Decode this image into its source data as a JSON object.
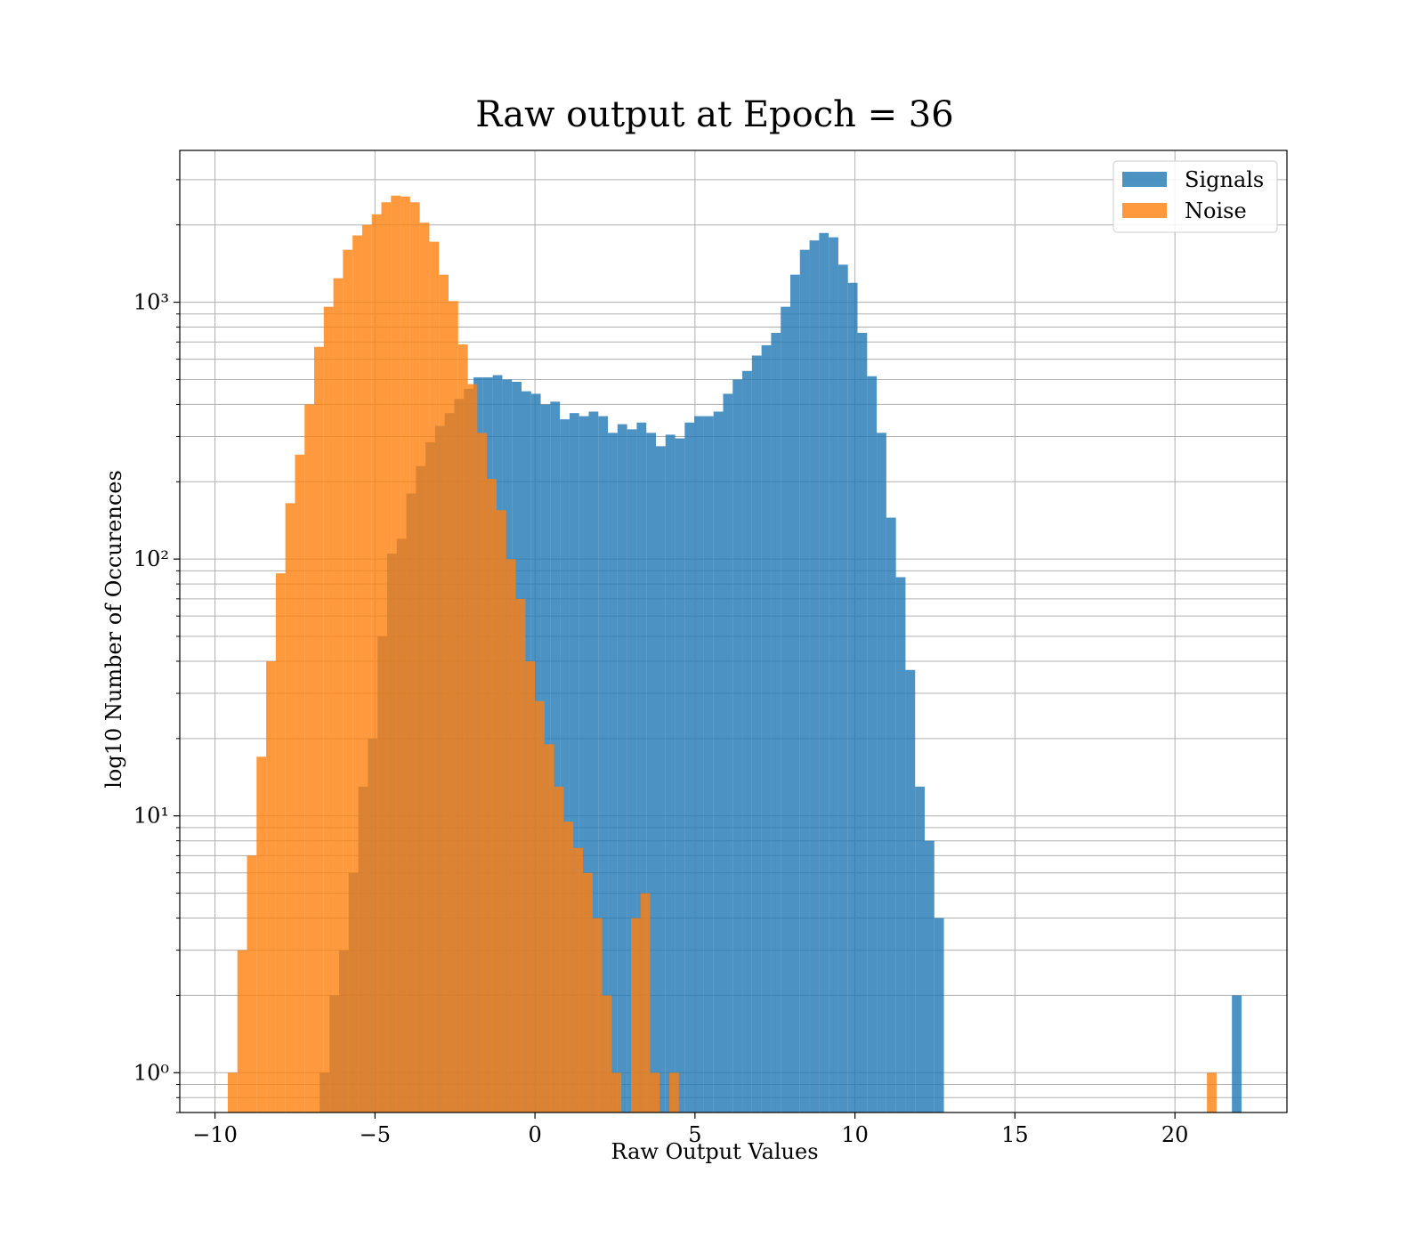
{
  "chart_data": {
    "type": "bar",
    "title": "Raw output at Epoch = 36",
    "xlabel": "Raw Output Values",
    "ylabel": "log10 Number of Occurences",
    "yscale": "log",
    "xlim": [
      -11.1,
      23.5
    ],
    "ylim": [
      0.7,
      3900
    ],
    "grid": true,
    "legend_position": "top-right",
    "x_ticks": [
      -10,
      -5,
      0,
      5,
      10,
      15,
      20
    ],
    "x_tick_labels": [
      "−10",
      "−5",
      "0",
      "5",
      "10",
      "15",
      "20"
    ],
    "y_ticks": [
      1,
      10,
      100,
      1000
    ],
    "y_tick_labels": [
      "10⁰",
      "10¹",
      "10²",
      "10³"
    ],
    "series": [
      {
        "name": "Signals",
        "color": "#1f77b4",
        "bins": [
          [
            -6.73,
            -6.42,
            1
          ],
          [
            -6.42,
            -6.12,
            2
          ],
          [
            -6.12,
            -5.82,
            3
          ],
          [
            -5.82,
            -5.52,
            6
          ],
          [
            -5.52,
            -5.22,
            13
          ],
          [
            -5.22,
            -4.92,
            20
          ],
          [
            -4.92,
            -4.62,
            50
          ],
          [
            -4.62,
            -4.32,
            105
          ],
          [
            -4.32,
            -4.02,
            120
          ],
          [
            -4.02,
            -3.72,
            180
          ],
          [
            -3.72,
            -3.42,
            230
          ],
          [
            -3.42,
            -3.12,
            285
          ],
          [
            -3.12,
            -2.82,
            330
          ],
          [
            -2.82,
            -2.52,
            370
          ],
          [
            -2.52,
            -2.22,
            420
          ],
          [
            -2.22,
            -1.92,
            460
          ],
          [
            -1.92,
            -1.62,
            510
          ],
          [
            -1.62,
            -1.32,
            510
          ],
          [
            -1.32,
            -1.02,
            520
          ],
          [
            -1.02,
            -0.72,
            500
          ],
          [
            -0.72,
            -0.42,
            490
          ],
          [
            -0.42,
            -0.12,
            450
          ],
          [
            -0.12,
            0.18,
            440
          ],
          [
            0.18,
            0.48,
            400
          ],
          [
            0.48,
            0.78,
            410
          ],
          [
            0.78,
            1.08,
            350
          ],
          [
            1.08,
            1.38,
            370
          ],
          [
            1.38,
            1.68,
            360
          ],
          [
            1.68,
            1.98,
            375
          ],
          [
            1.98,
            2.28,
            360
          ],
          [
            2.28,
            2.58,
            310
          ],
          [
            2.58,
            2.88,
            335
          ],
          [
            2.88,
            3.18,
            320
          ],
          [
            3.18,
            3.48,
            340
          ],
          [
            3.48,
            3.78,
            310
          ],
          [
            3.78,
            4.08,
            275
          ],
          [
            4.08,
            4.38,
            305
          ],
          [
            4.38,
            4.68,
            295
          ],
          [
            4.68,
            4.98,
            340
          ],
          [
            4.98,
            5.28,
            360
          ],
          [
            5.28,
            5.58,
            360
          ],
          [
            5.58,
            5.88,
            375
          ],
          [
            5.88,
            6.18,
            440
          ],
          [
            6.18,
            6.48,
            500
          ],
          [
            6.48,
            6.78,
            540
          ],
          [
            6.78,
            7.08,
            620
          ],
          [
            7.08,
            7.38,
            680
          ],
          [
            7.38,
            7.68,
            760
          ],
          [
            7.68,
            7.98,
            960
          ],
          [
            7.98,
            8.28,
            1280
          ],
          [
            8.28,
            8.58,
            1600
          ],
          [
            8.58,
            8.88,
            1740
          ],
          [
            8.88,
            9.18,
            1860
          ],
          [
            9.18,
            9.48,
            1790
          ],
          [
            9.48,
            9.78,
            1400
          ],
          [
            9.78,
            10.08,
            1190
          ],
          [
            10.08,
            10.38,
            760
          ],
          [
            10.38,
            10.68,
            515
          ],
          [
            10.68,
            10.98,
            310
          ],
          [
            10.98,
            11.28,
            145
          ],
          [
            11.28,
            11.58,
            85
          ],
          [
            11.58,
            11.88,
            37
          ],
          [
            11.88,
            12.18,
            13
          ],
          [
            12.18,
            12.48,
            8
          ],
          [
            12.48,
            12.78,
            4
          ],
          [
            21.78,
            22.08,
            2
          ]
        ]
      },
      {
        "name": "Noise",
        "color": "#ff7f0e",
        "bins": [
          [
            -9.6,
            -9.3,
            1
          ],
          [
            -9.3,
            -9.0,
            3
          ],
          [
            -9.0,
            -8.7,
            7
          ],
          [
            -8.7,
            -8.4,
            17
          ],
          [
            -8.4,
            -8.1,
            40
          ],
          [
            -8.1,
            -7.8,
            88
          ],
          [
            -7.8,
            -7.5,
            165
          ],
          [
            -7.5,
            -7.2,
            255
          ],
          [
            -7.2,
            -6.9,
            400
          ],
          [
            -6.9,
            -6.6,
            670
          ],
          [
            -6.6,
            -6.3,
            960
          ],
          [
            -6.3,
            -6.0,
            1240
          ],
          [
            -6.0,
            -5.7,
            1600
          ],
          [
            -5.7,
            -5.4,
            1820
          ],
          [
            -5.4,
            -5.1,
            2000
          ],
          [
            -5.1,
            -4.8,
            2200
          ],
          [
            -4.8,
            -4.5,
            2450
          ],
          [
            -4.5,
            -4.2,
            2600
          ],
          [
            -4.2,
            -3.9,
            2580
          ],
          [
            -3.9,
            -3.6,
            2450
          ],
          [
            -3.6,
            -3.3,
            2040
          ],
          [
            -3.3,
            -3.0,
            1720
          ],
          [
            -3.0,
            -2.7,
            1280
          ],
          [
            -2.7,
            -2.4,
            1010
          ],
          [
            -2.4,
            -2.1,
            685
          ],
          [
            -2.1,
            -1.8,
            480
          ],
          [
            -1.8,
            -1.5,
            310
          ],
          [
            -1.5,
            -1.2,
            205
          ],
          [
            -1.2,
            -0.9,
            155
          ],
          [
            -0.9,
            -0.6,
            100
          ],
          [
            -0.6,
            -0.3,
            70
          ],
          [
            -0.3,
            0.0,
            40
          ],
          [
            0.0,
            0.3,
            28
          ],
          [
            0.3,
            0.6,
            19
          ],
          [
            0.6,
            0.9,
            13
          ],
          [
            0.9,
            1.2,
            9.5
          ],
          [
            1.2,
            1.5,
            7.5
          ],
          [
            1.5,
            1.8,
            6
          ],
          [
            1.8,
            2.1,
            4
          ],
          [
            2.1,
            2.4,
            2
          ],
          [
            2.4,
            2.7,
            1
          ],
          [
            3.0,
            3.3,
            4
          ],
          [
            3.3,
            3.6,
            5
          ],
          [
            3.6,
            3.9,
            1
          ],
          [
            4.2,
            4.5,
            1
          ],
          [
            21.0,
            21.3,
            1
          ]
        ]
      }
    ]
  }
}
